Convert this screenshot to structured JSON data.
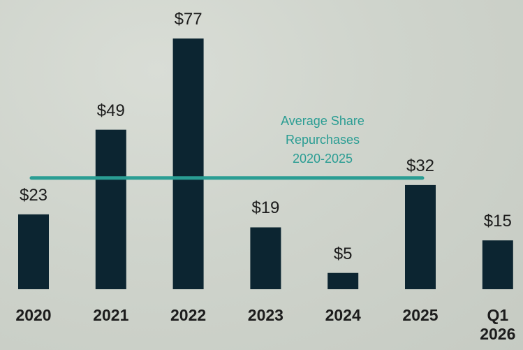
{
  "chart_data": {
    "type": "bar",
    "categories": [
      "2020",
      "2021",
      "2022",
      "2023",
      "2024",
      "2025",
      "Q1 2026"
    ],
    "values": [
      23,
      49,
      77,
      19,
      5,
      32,
      15
    ],
    "value_labels": [
      "$23",
      "$49",
      "$77",
      "$19",
      "$5",
      "$32",
      "$15"
    ],
    "color": "#0c2531",
    "reference_line": {
      "value": 34.17,
      "label": "Average Share Repurchases 2020-2025",
      "color": "#2a9d93"
    }
  }
}
